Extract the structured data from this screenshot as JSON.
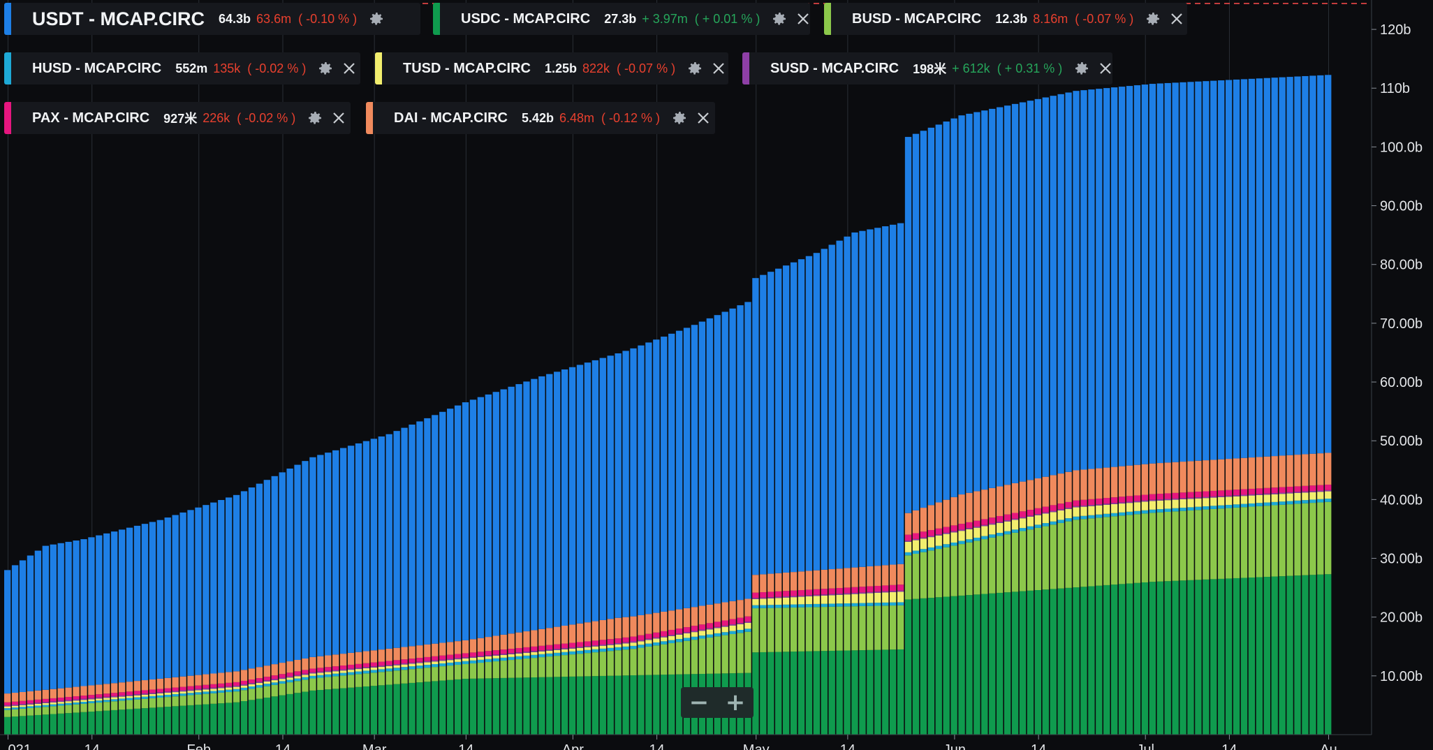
{
  "legend": [
    {
      "name": "USDT - MCAP.CIRC",
      "value": "64.3b",
      "change": "63.6m",
      "pct": "( -0.10 % )",
      "color": "#1e7fe6",
      "dir": "down",
      "big": true,
      "close": false
    },
    {
      "name": "USDC - MCAP.CIRC",
      "value": "27.3b",
      "change": "+ 3.97m",
      "pct": "( + 0.01 % )",
      "color": "#0f9b4e",
      "dir": "up",
      "big": false,
      "close": true
    },
    {
      "name": "BUSD - MCAP.CIRC",
      "value": "12.3b",
      "change": "8.16m",
      "pct": "( -0.07 % )",
      "color": "#8cc84b",
      "dir": "down",
      "big": false,
      "close": true
    },
    {
      "name": "HUSD - MCAP.CIRC",
      "value": "552m",
      "change": "135k",
      "pct": "( -0.02 % )",
      "color": "#1ea9d6",
      "dir": "down",
      "big": false,
      "close": true
    },
    {
      "name": "TUSD - MCAP.CIRC",
      "value": "1.25b",
      "change": "822k",
      "pct": "( -0.07 % )",
      "color": "#f2ee6e",
      "dir": "down",
      "big": false,
      "close": true
    },
    {
      "name": "SUSD - MCAP.CIRC",
      "value": "198米",
      "change": "+ 612k",
      "pct": "( + 0.31 % )",
      "color": "#8e3fa6",
      "dir": "up",
      "big": false,
      "close": true
    },
    {
      "name": "PAX - MCAP.CIRC",
      "value": "927米",
      "change": "226k",
      "pct": "( -0.02 % )",
      "color": "#e6167f",
      "dir": "down",
      "big": false,
      "close": true
    },
    {
      "name": "DAI - MCAP.CIRC",
      "value": "5.42b",
      "change": "6.48m",
      "pct": "( -0.12 % )",
      "color": "#f08a5d",
      "dir": "down",
      "big": false,
      "close": true
    }
  ],
  "colors": {
    "up": "#26a65b",
    "down": "#e8402e",
    "background": "#0b0c0f",
    "bar_divider": "#0b0c0f"
  },
  "controls": {
    "zoom_out_label": "−",
    "zoom_in_label": "+"
  },
  "chart_data": {
    "type": "bar",
    "stacked": true,
    "bar_count": 174,
    "ylim": [
      0,
      125
    ],
    "y_tick_values": [
      10,
      20,
      30,
      40,
      50,
      60,
      70,
      80,
      90,
      100,
      110,
      120
    ],
    "y_tick_labels": [
      "10.00b",
      "20.00b",
      "30.00b",
      "40.00b",
      "50.00b",
      "60.00b",
      "70.00b",
      "80.00b",
      "90.00b",
      "100.0b",
      "110b",
      "120b"
    ],
    "x_tick_labels": [
      "021",
      "14",
      "Feb",
      "14",
      "Mar",
      "14",
      "Apr",
      "14",
      "May",
      "14",
      "Jun",
      "14",
      "Jul",
      "14",
      "Au"
    ],
    "x_tick_positions": [
      0,
      11,
      25,
      36,
      48,
      60,
      74,
      85,
      98,
      110,
      124,
      135,
      149,
      160,
      173
    ],
    "stack_order": [
      "USDC",
      "BUSD",
      "HUSD",
      "TUSD",
      "SUSD",
      "PAX",
      "DAI",
      "USDT"
    ],
    "series_keyframes": {
      "USDC": [
        [
          0,
          3.0
        ],
        [
          30,
          5.5
        ],
        [
          40,
          7.5
        ],
        [
          60,
          9.5
        ],
        [
          97,
          10.5
        ],
        [
          98,
          14.0
        ],
        [
          117,
          14.5
        ],
        [
          118,
          23.0
        ],
        [
          150,
          26.0
        ],
        [
          173,
          27.3
        ]
      ],
      "BUSD": [
        [
          0,
          1.2
        ],
        [
          60,
          2.5
        ],
        [
          82,
          4.5
        ],
        [
          97,
          7.0
        ],
        [
          98,
          7.5
        ],
        [
          117,
          7.5
        ],
        [
          118,
          7.5
        ],
        [
          140,
          11.5
        ],
        [
          173,
          12.3
        ]
      ],
      "HUSD": [
        [
          0,
          0.3
        ],
        [
          60,
          0.5
        ],
        [
          173,
          0.55
        ]
      ],
      "TUSD": [
        [
          0,
          0.3
        ],
        [
          80,
          0.5
        ],
        [
          97,
          1.0
        ],
        [
          117,
          1.8
        ],
        [
          173,
          1.25
        ]
      ],
      "SUSD": [
        [
          0,
          0.2
        ],
        [
          173,
          0.2
        ]
      ],
      "PAX": [
        [
          0,
          0.5
        ],
        [
          60,
          0.7
        ],
        [
          97,
          0.9
        ],
        [
          117,
          1.0
        ],
        [
          173,
          0.93
        ]
      ],
      "DAI": [
        [
          0,
          1.5
        ],
        [
          60,
          2.2
        ],
        [
          80,
          3.5
        ],
        [
          97,
          3.0
        ],
        [
          117,
          3.5
        ],
        [
          125,
          5.0
        ],
        [
          173,
          5.42
        ]
      ],
      "USDT": [
        [
          0,
          21.0
        ],
        [
          5,
          24.5
        ],
        [
          10,
          25.0
        ],
        [
          20,
          27.0
        ],
        [
          30,
          30.0
        ],
        [
          40,
          34.0
        ],
        [
          50,
          36.5
        ],
        [
          60,
          40.5
        ],
        [
          70,
          43.0
        ],
        [
          80,
          45.0
        ],
        [
          90,
          48.0
        ],
        [
          97,
          50.5
        ],
        [
          98,
          50.5
        ],
        [
          106,
          54.0
        ],
        [
          111,
          57.0
        ],
        [
          117,
          58.0
        ],
        [
          118,
          64.0
        ],
        [
          125,
          64.5
        ],
        [
          150,
          64.6
        ],
        [
          173,
          64.3
        ]
      ]
    }
  }
}
